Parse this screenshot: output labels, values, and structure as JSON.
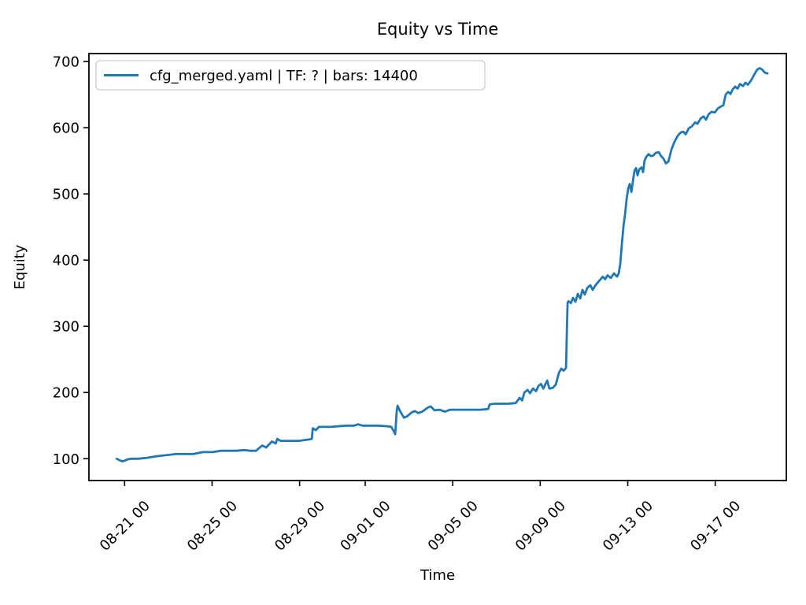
{
  "title": "Equity vs Time",
  "axes": {
    "xlabel": "Time",
    "ylabel": "Equity"
  },
  "legend": {
    "entries": [
      "cfg_merged.yaml | TF: ? | bars: 14400"
    ],
    "position": "upper left"
  },
  "colors": {
    "line": "#1f77b4",
    "legend_border": "#cccccc",
    "axes_frame": "#000000",
    "background": "#ffffff"
  },
  "chart_data": {
    "type": "line",
    "title": "Equity vs Time",
    "xlabel": "Time",
    "ylabel": "Equity",
    "grid": false,
    "legend_position": "upper left",
    "x_unit": "days since 08-21 00:00",
    "xlim": [
      -1.63,
      30.25
    ],
    "ylim": [
      67,
      712
    ],
    "yticks": [
      100,
      200,
      300,
      400,
      500,
      600,
      700
    ],
    "xticks": {
      "positions": [
        0,
        4,
        8,
        11,
        15,
        19,
        23,
        27
      ],
      "labels": [
        "08-21 00",
        "08-25 00",
        "08-29 00",
        "09-01 00",
        "09-05 00",
        "09-09 00",
        "09-13 00",
        "09-17 00"
      ]
    },
    "series": [
      {
        "name": "cfg_merged.yaml | TF: ? | bars: 14400",
        "color": "#1f77b4",
        "points": [
          [
            -0.36,
            100
          ],
          [
            -0.25,
            98
          ],
          [
            -0.11,
            96
          ],
          [
            0,
            97
          ],
          [
            0.14,
            99
          ],
          [
            0.32,
            100
          ],
          [
            0.61,
            100
          ],
          [
            0.97,
            101
          ],
          [
            1.33,
            103
          ],
          [
            1.55,
            104
          ],
          [
            1.8,
            105
          ],
          [
            2.34,
            107
          ],
          [
            2.7,
            107
          ],
          [
            3.13,
            107
          ],
          [
            3.42,
            109
          ],
          [
            3.6,
            110
          ],
          [
            4.03,
            110
          ],
          [
            4.39,
            112
          ],
          [
            5.11,
            112
          ],
          [
            5.47,
            113
          ],
          [
            5.75,
            112
          ],
          [
            6.01,
            112
          ],
          [
            6.29,
            120
          ],
          [
            6.47,
            117
          ],
          [
            6.65,
            123
          ],
          [
            6.73,
            126
          ],
          [
            6.91,
            123
          ],
          [
            6.98,
            130
          ],
          [
            7.12,
            127
          ],
          [
            7.45,
            127
          ],
          [
            7.99,
            127
          ],
          [
            8.42,
            129
          ],
          [
            8.56,
            130
          ],
          [
            8.6,
            146
          ],
          [
            8.74,
            143
          ],
          [
            8.88,
            148
          ],
          [
            9.42,
            148
          ],
          [
            10.14,
            150
          ],
          [
            10.5,
            150
          ],
          [
            10.68,
            152
          ],
          [
            10.86,
            150
          ],
          [
            11.58,
            150
          ],
          [
            12.01,
            149
          ],
          [
            12.19,
            148
          ],
          [
            12.33,
            140
          ],
          [
            12.37,
            137
          ],
          [
            12.44,
            172
          ],
          [
            12.48,
            180
          ],
          [
            12.59,
            172
          ],
          [
            12.77,
            162
          ],
          [
            12.91,
            164
          ],
          [
            13.13,
            170
          ],
          [
            13.27,
            172
          ],
          [
            13.42,
            169
          ],
          [
            13.6,
            171
          ],
          [
            13.85,
            177
          ],
          [
            13.99,
            179
          ],
          [
            14.17,
            173
          ],
          [
            14.39,
            174
          ],
          [
            14.64,
            171
          ],
          [
            14.89,
            174
          ],
          [
            15.5,
            174
          ],
          [
            16.26,
            174
          ],
          [
            16.62,
            175
          ],
          [
            16.69,
            182
          ],
          [
            16.91,
            183
          ],
          [
            17.52,
            183
          ],
          [
            17.88,
            184
          ],
          [
            18.06,
            192
          ],
          [
            18.17,
            188
          ],
          [
            18.28,
            200
          ],
          [
            18.42,
            204
          ],
          [
            18.53,
            199
          ],
          [
            18.67,
            206
          ],
          [
            18.81,
            202
          ],
          [
            18.92,
            210
          ],
          [
            19.03,
            213
          ],
          [
            19.14,
            206
          ],
          [
            19.32,
            218
          ],
          [
            19.42,
            206
          ],
          [
            19.57,
            207
          ],
          [
            19.71,
            212
          ],
          [
            19.86,
            230
          ],
          [
            19.96,
            236
          ],
          [
            20.07,
            233
          ],
          [
            20.18,
            237
          ],
          [
            20.25,
            335
          ],
          [
            20.29,
            338
          ],
          [
            20.4,
            335
          ],
          [
            20.5,
            343
          ],
          [
            20.61,
            337
          ],
          [
            20.72,
            349
          ],
          [
            20.83,
            342
          ],
          [
            20.93,
            355
          ],
          [
            21.04,
            348
          ],
          [
            21.15,
            358
          ],
          [
            21.29,
            362
          ],
          [
            21.4,
            355
          ],
          [
            21.51,
            361
          ],
          [
            21.65,
            367
          ],
          [
            21.76,
            371
          ],
          [
            21.86,
            375
          ],
          [
            21.97,
            371
          ],
          [
            22.08,
            377
          ],
          [
            22.23,
            373
          ],
          [
            22.37,
            380
          ],
          [
            22.51,
            375
          ],
          [
            22.59,
            380
          ],
          [
            22.66,
            395
          ],
          [
            22.73,
            423
          ],
          [
            22.81,
            452
          ],
          [
            22.88,
            470
          ],
          [
            22.95,
            492
          ],
          [
            23.02,
            508
          ],
          [
            23.09,
            515
          ],
          [
            23.17,
            503
          ],
          [
            23.24,
            520
          ],
          [
            23.31,
            535
          ],
          [
            23.38,
            539
          ],
          [
            23.45,
            528
          ],
          [
            23.52,
            537
          ],
          [
            23.63,
            540
          ],
          [
            23.7,
            533
          ],
          [
            23.77,
            550
          ],
          [
            23.85,
            556
          ],
          [
            23.95,
            560
          ],
          [
            24.06,
            557
          ],
          [
            24.17,
            558
          ],
          [
            24.28,
            562
          ],
          [
            24.42,
            563
          ],
          [
            24.53,
            557
          ],
          [
            24.64,
            553
          ],
          [
            24.75,
            546
          ],
          [
            24.86,
            549
          ],
          [
            25,
            567
          ],
          [
            25.14,
            579
          ],
          [
            25.29,
            588
          ],
          [
            25.43,
            593
          ],
          [
            25.54,
            594
          ],
          [
            25.65,
            590
          ],
          [
            25.79,
            599
          ],
          [
            25.93,
            602
          ],
          [
            26.08,
            608
          ],
          [
            26.19,
            606
          ],
          [
            26.33,
            614
          ],
          [
            26.47,
            617
          ],
          [
            26.58,
            612
          ],
          [
            26.69,
            620
          ],
          [
            26.83,
            624
          ],
          [
            26.98,
            623
          ],
          [
            27.12,
            629
          ],
          [
            27.26,
            632
          ],
          [
            27.37,
            634
          ],
          [
            27.48,
            650
          ],
          [
            27.59,
            654
          ],
          [
            27.7,
            651
          ],
          [
            27.8,
            658
          ],
          [
            27.91,
            662
          ],
          [
            28.02,
            659
          ],
          [
            28.13,
            666
          ],
          [
            28.27,
            663
          ],
          [
            28.38,
            668
          ],
          [
            28.49,
            665
          ],
          [
            28.63,
            671
          ],
          [
            28.78,
            680
          ],
          [
            28.92,
            688
          ],
          [
            29.03,
            690
          ],
          [
            29.14,
            688
          ],
          [
            29.28,
            683
          ],
          [
            29.39,
            682
          ]
        ]
      }
    ]
  }
}
